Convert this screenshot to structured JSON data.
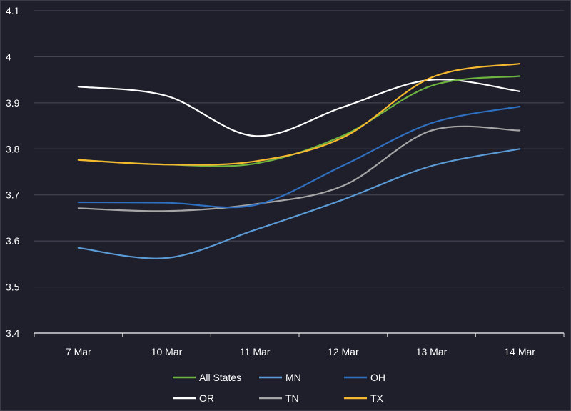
{
  "chart_data": {
    "type": "line",
    "title": "",
    "xlabel": "",
    "ylabel": "",
    "categories": [
      "7 Mar",
      "10 Mar",
      "11 Mar",
      "12 Mar",
      "13 Mar",
      "14 Mar"
    ],
    "ylim": [
      3.4,
      4.1
    ],
    "yticks": [
      "3.4",
      "3.5",
      "3.6",
      "3.7",
      "3.8",
      "3.9",
      "4",
      "4.1"
    ],
    "grid": true,
    "legend_position": "bottom",
    "series": [
      {
        "name": "All States",
        "color": "#6db33f",
        "values": [
          3.776,
          3.766,
          3.768,
          3.829,
          3.937,
          3.958
        ]
      },
      {
        "name": "MN",
        "color": "#5b9bd5",
        "values": [
          3.585,
          3.563,
          3.624,
          3.69,
          3.763,
          3.8
        ]
      },
      {
        "name": "OH",
        "color": "#2e6fbf",
        "values": [
          3.684,
          3.683,
          3.678,
          3.764,
          3.856,
          3.892
        ]
      },
      {
        "name": "OR",
        "color": "#ffffff",
        "values": [
          3.935,
          3.915,
          3.828,
          3.891,
          3.95,
          3.925
        ]
      },
      {
        "name": "TN",
        "color": "#a6a6a6",
        "values": [
          3.671,
          3.665,
          3.68,
          3.72,
          3.84,
          3.84
        ]
      },
      {
        "name": "TX",
        "color": "#f5b82e",
        "values": [
          3.776,
          3.766,
          3.773,
          3.825,
          3.955,
          3.985
        ]
      }
    ]
  }
}
